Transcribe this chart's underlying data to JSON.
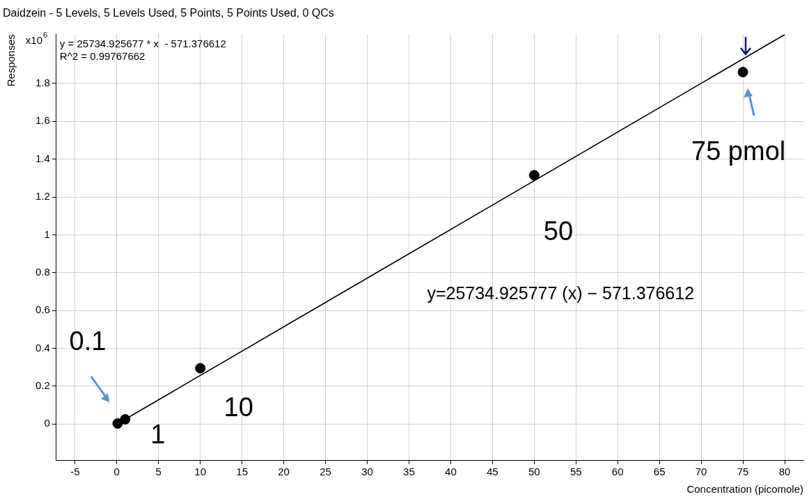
{
  "chart_data": {
    "type": "scatter",
    "title": "Daidzein - 5 Levels, 5 Levels Used, 5 Points, 5 Points Used, 0 QCs",
    "xlabel": "Concentration (picomole)",
    "ylabel": "Responses",
    "x": [
      0.1,
      1,
      10,
      50,
      75
    ],
    "series": [
      {
        "color": "#000000",
        "values": [
          0.003,
          0.025,
          0.295,
          1.315,
          1.86
        ],
        "marker": "circle"
      },
      {
        "type": "line",
        "color": "#000000",
        "x": [
          0.1,
          80
        ],
        "values": [
          0.002,
          2.058
        ],
        "marker": "none"
      }
    ],
    "xlim": [
      -7.25,
      82.25
    ],
    "xticks": [
      -5,
      0,
      5,
      10,
      15,
      20,
      25,
      30,
      35,
      40,
      45,
      50,
      55,
      60,
      65,
      70,
      75,
      80
    ],
    "ylim": [
      -0.19,
      2.06
    ],
    "yticks": [
      0,
      0.2,
      0.4,
      0.6,
      0.8,
      1,
      1.2,
      1.4,
      1.6,
      1.8
    ],
    "grid": true,
    "legend": false,
    "annotations": [
      "x10$^{6}$",
      "y = 25734.925677 * x  - 571.376612",
      "R^2 = 0.99767662",
      "0.1",
      "1",
      "10",
      "50",
      "75 pmol",
      "y=25734.925777 (x) − 571.376612"
    ]
  }
}
